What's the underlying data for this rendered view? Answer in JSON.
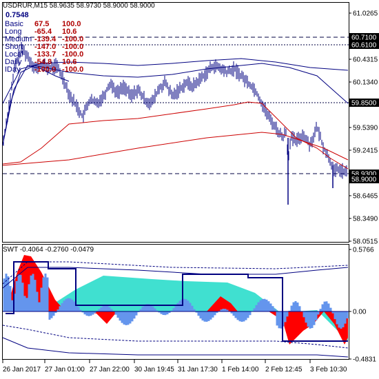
{
  "window": {
    "symbol": "USDRUR,M15",
    "ohlc": "58.9635 58.9730 58.9000 58.9000",
    "value_label": "0.7548"
  },
  "colors": {
    "background": "#ffffff",
    "candles": "#000080",
    "ma_fast": "#000080",
    "ma_red": "#cc0000",
    "envelope": "#000080",
    "level_line": "#000040",
    "osc_red": "#ff0000",
    "osc_turquoise": "#40e0d0",
    "osc_blue": "#6495ed",
    "osc_line": "#000080"
  },
  "info_rows": [
    {
      "name": "Basic",
      "v1": "67.5",
      "v2": "100.0"
    },
    {
      "name": "Long",
      "v1": "-65.4",
      "v2": "10.6"
    },
    {
      "name": "Medium",
      "v1": "-139.4",
      "v2": "-100.0"
    },
    {
      "name": "Short",
      "v1": "-147.0",
      "v2": "-100.0"
    },
    {
      "name": "Local",
      "v1": "-133.7",
      "v2": "-100.0"
    },
    {
      "name": "Daily",
      "v1": "-54.8",
      "v2": "10.6"
    },
    {
      "name": "IDay",
      "v1": "-100.0",
      "v2": "-100.0"
    }
  ],
  "price_axis": {
    "ticks": [
      "61.0265",
      "60.4315",
      "60.1340",
      "59.5390",
      "59.2415",
      "58.6465",
      "58.3490",
      "58.0515"
    ],
    "level_tags": [
      "60.7100",
      "60.6100",
      "59.8500",
      "58.9300",
      "58.9000"
    ]
  },
  "oscillator": {
    "header": "SWT -0.4064 -0.2760 -0.0479",
    "ticks": [
      "0.5766",
      "0.00",
      "-0.4831"
    ]
  },
  "time_axis": {
    "labels": [
      "26 Jan 2017",
      "27 Jan 01:00",
      "27 Jan 22:00",
      "30 Jan 19:45",
      "31 Jan 17:30",
      "1 Feb 14:00",
      "2 Feb 12:45",
      "3 Feb 10:30"
    ]
  }
}
